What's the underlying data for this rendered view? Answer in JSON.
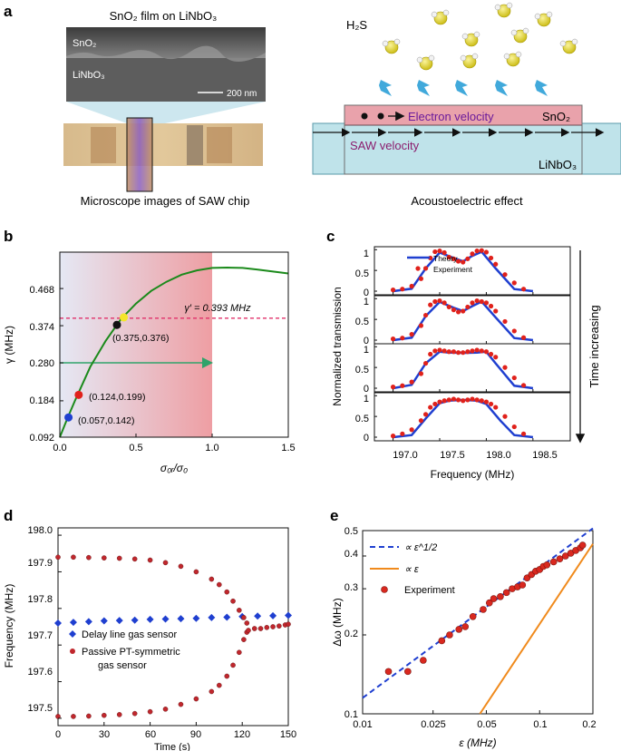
{
  "panels": {
    "a": {
      "label": "a",
      "sem_title": "SnO₂ film on LiNbO₃",
      "sem_layer_top": "SnO₂",
      "sem_layer_bottom": "LiNbO₃",
      "scale_bar": "200 nm",
      "chip_caption": "Microscope images of SAW chip",
      "gas_label": "H₂S",
      "electron_label": "Electron velocity",
      "film_label": "SnO₂",
      "saw_label": "SAW velocity",
      "substrate_label": "LiNbO₃",
      "effect_caption": "Acoustoelectric effect",
      "colors": {
        "film": "#e9a2ab",
        "substrate": "#bfe3ea",
        "arrow": "#41a9db",
        "molecule_s": "#e1d21b",
        "text_purple": "#6a1a9b"
      }
    },
    "b": {
      "label": "b",
      "gamma_prime_label": "γ′ = 0.393 MHz",
      "point_labels": [
        "(0.375,0.376)",
        "(0.124,0.199)",
        "(0.057,0.142)"
      ],
      "xlabel": "σ₀ᵣ/σ₀",
      "ylabel": "γ (MHz)",
      "xticks": [
        "0.0",
        "0.5",
        "1.0",
        "1.5"
      ],
      "yticks": [
        "0.092",
        "0.184",
        "0.280",
        "0.374",
        "0.468"
      ]
    },
    "c": {
      "label": "c",
      "legend": [
        "Theory",
        "Experiment"
      ],
      "ylabel": "Normalized transmission",
      "xlabel": "Frequency (MHz)",
      "xticks": [
        "197.0",
        "197.5",
        "198.0",
        "198.5"
      ],
      "yticks": [
        "0",
        "0.5",
        "1"
      ],
      "side_label": "Time increasing"
    },
    "d": {
      "label": "d",
      "xlabel": "Time (s)",
      "ylabel": "Frequency (MHz)",
      "xticks": [
        "0",
        "30",
        "60",
        "90",
        "120",
        "150"
      ],
      "yticks": [
        "197.5",
        "197.6",
        "197.7",
        "197.8",
        "197.9",
        "198.0"
      ],
      "legend": [
        "Delay line gas sensor",
        "Passive PT-symmetric",
        "gas sensor"
      ]
    },
    "e": {
      "label": "e",
      "xlabel": "ε (MHz)",
      "ylabel": "Δω (MHz)",
      "xticks": [
        "0.01",
        "0.025",
        "0.05",
        "0.1",
        "0.2"
      ],
      "yticks": [
        "0.1",
        "0.2",
        "0.3",
        "0.4",
        "0.5"
      ],
      "legend": [
        "∝ ε^1/2",
        "∝ ε",
        "Experiment"
      ]
    }
  },
  "chart_data": [
    {
      "id": "b",
      "type": "line",
      "title": "",
      "xlabel": "σ₀ᵣ/σ₀",
      "ylabel": "γ (MHz)",
      "xlim": [
        0,
        1.5
      ],
      "ylim": [
        0.092,
        0.56
      ],
      "series": [
        {
          "name": "γ curve",
          "x": [
            0,
            0.05,
            0.1,
            0.2,
            0.3,
            0.4,
            0.5,
            0.6,
            0.7,
            0.8,
            0.9,
            1.0,
            1.1,
            1.2,
            1.3,
            1.4,
            1.5
          ],
          "y": [
            0.092,
            0.14,
            0.185,
            0.27,
            0.335,
            0.39,
            0.43,
            0.462,
            0.485,
            0.503,
            0.514,
            0.52,
            0.521,
            0.52,
            0.516,
            0.511,
            0.506
          ]
        }
      ],
      "points": [
        {
          "x": 0.057,
          "y": 0.142,
          "color": "#1f3fd0"
        },
        {
          "x": 0.124,
          "y": 0.199,
          "color": "#e0211b"
        },
        {
          "x": 0.375,
          "y": 0.376,
          "color": "#111111"
        },
        {
          "x": 0.42,
          "y": 0.395,
          "color": "#f4e62a"
        }
      ],
      "hline": 0.393,
      "arrow_y": 0.28,
      "shade_to_x": 1.0
    },
    {
      "id": "c",
      "type": "line",
      "xlabel": "Frequency (MHz)",
      "ylabel": "Normalized transmission",
      "xlim": [
        196.8,
        198.9
      ],
      "ylim": [
        0,
        1.05
      ],
      "subplots": [
        {
          "theory": {
            "x": [
              197.0,
              197.2,
              197.35,
              197.5,
              197.65,
              197.75,
              197.85,
              197.95,
              198.1,
              198.3,
              198.5
            ],
            "y": [
              0,
              0.06,
              0.55,
              0.93,
              0.8,
              0.72,
              0.85,
              0.95,
              0.55,
              0.05,
              0
            ]
          },
          "experiment": {
            "x": [
              197.0,
              197.1,
              197.2,
              197.3,
              197.35,
              197.4,
              197.45,
              197.5,
              197.55,
              197.6,
              197.65,
              197.7,
              197.75,
              197.8,
              197.85,
              197.9,
              197.95,
              198.0,
              198.05,
              198.1,
              198.2,
              198.3,
              198.4
            ],
            "y": [
              0.03,
              0.05,
              0.12,
              0.3,
              0.55,
              0.8,
              0.95,
              0.97,
              0.93,
              0.82,
              0.78,
              0.72,
              0.7,
              0.78,
              0.9,
              0.97,
              0.98,
              0.94,
              0.8,
              0.65,
              0.4,
              0.2,
              0.05
            ]
          }
        },
        {
          "theory": {
            "x": [
              197.0,
              197.2,
              197.35,
              197.5,
              197.65,
              197.75,
              197.85,
              197.95,
              198.1,
              198.3,
              198.5
            ],
            "y": [
              0,
              0.06,
              0.58,
              0.92,
              0.78,
              0.7,
              0.82,
              0.93,
              0.55,
              0.05,
              0
            ]
          },
          "experiment": {
            "x": [
              197.0,
              197.1,
              197.2,
              197.3,
              197.35,
              197.4,
              197.45,
              197.5,
              197.55,
              197.6,
              197.65,
              197.7,
              197.75,
              197.8,
              197.85,
              197.9,
              197.95,
              198.0,
              198.05,
              198.1,
              198.2,
              198.3,
              198.4
            ],
            "y": [
              0.03,
              0.05,
              0.14,
              0.35,
              0.6,
              0.85,
              0.93,
              0.95,
              0.9,
              0.8,
              0.73,
              0.68,
              0.7,
              0.8,
              0.9,
              0.95,
              0.93,
              0.9,
              0.82,
              0.7,
              0.45,
              0.22,
              0.06
            ]
          }
        },
        {
          "theory": {
            "x": [
              197.0,
              197.2,
              197.35,
              197.5,
              197.6,
              197.75,
              197.9,
              198.0,
              198.1,
              198.3,
              198.5
            ],
            "y": [
              0,
              0.08,
              0.6,
              0.88,
              0.86,
              0.85,
              0.86,
              0.88,
              0.6,
              0.06,
              0
            ]
          },
          "experiment": {
            "x": [
              197.0,
              197.1,
              197.2,
              197.3,
              197.35,
              197.4,
              197.45,
              197.5,
              197.55,
              197.6,
              197.65,
              197.7,
              197.75,
              197.8,
              197.85,
              197.9,
              197.95,
              198.0,
              198.05,
              198.1,
              198.2,
              198.3,
              198.4
            ],
            "y": [
              0.03,
              0.06,
              0.15,
              0.35,
              0.6,
              0.82,
              0.9,
              0.92,
              0.9,
              0.88,
              0.88,
              0.86,
              0.86,
              0.88,
              0.9,
              0.92,
              0.9,
              0.88,
              0.82,
              0.75,
              0.5,
              0.25,
              0.07
            ]
          }
        },
        {
          "theory": {
            "x": [
              197.0,
              197.2,
              197.35,
              197.5,
              197.6,
              197.75,
              197.9,
              198.0,
              198.15,
              198.3,
              198.5
            ],
            "y": [
              0,
              0.05,
              0.45,
              0.82,
              0.88,
              0.9,
              0.88,
              0.8,
              0.4,
              0.05,
              0
            ]
          },
          "experiment": {
            "x": [
              197.0,
              197.1,
              197.2,
              197.3,
              197.35,
              197.4,
              197.45,
              197.5,
              197.55,
              197.6,
              197.65,
              197.7,
              197.75,
              197.8,
              197.85,
              197.9,
              197.95,
              198.0,
              198.05,
              198.1,
              198.2,
              198.3,
              198.4
            ],
            "y": [
              0.03,
              0.08,
              0.18,
              0.4,
              0.55,
              0.72,
              0.8,
              0.85,
              0.88,
              0.9,
              0.92,
              0.9,
              0.88,
              0.9,
              0.92,
              0.9,
              0.88,
              0.85,
              0.8,
              0.72,
              0.5,
              0.25,
              0.08
            ]
          }
        }
      ]
    },
    {
      "id": "d",
      "type": "scatter",
      "xlabel": "Time (s)",
      "ylabel": "Frequency (MHz)",
      "xlim": [
        0,
        150
      ],
      "ylim": [
        197.48,
        198.02
      ],
      "series": [
        {
          "name": "Delay line gas sensor",
          "color": "#1f3fd0",
          "x": [
            0,
            10,
            20,
            30,
            40,
            50,
            60,
            70,
            80,
            90,
            100,
            110,
            120,
            130,
            140,
            150
          ],
          "y": [
            197.76,
            197.762,
            197.764,
            197.766,
            197.767,
            197.768,
            197.77,
            197.771,
            197.772,
            197.773,
            197.775,
            197.776,
            197.778,
            197.779,
            197.78,
            197.781
          ]
        },
        {
          "name": "PT upper branch",
          "color": "#c0272d",
          "x": [
            0,
            10,
            20,
            30,
            40,
            50,
            60,
            70,
            80,
            90,
            100,
            105,
            110,
            114,
            118,
            121,
            123
          ],
          "y": [
            197.94,
            197.94,
            197.939,
            197.938,
            197.937,
            197.935,
            197.932,
            197.925,
            197.915,
            197.9,
            197.88,
            197.865,
            197.845,
            197.82,
            197.795,
            197.775,
            197.76
          ]
        },
        {
          "name": "PT lower branch",
          "color": "#c0272d",
          "x": [
            0,
            10,
            20,
            30,
            40,
            50,
            60,
            70,
            80,
            90,
            100,
            105,
            110,
            114,
            118,
            121,
            123
          ],
          "y": [
            197.505,
            197.505,
            197.506,
            197.508,
            197.51,
            197.513,
            197.518,
            197.525,
            197.538,
            197.553,
            197.573,
            197.59,
            197.615,
            197.645,
            197.68,
            197.715,
            197.735
          ]
        },
        {
          "name": "PT merged",
          "color": "#c0272d",
          "x": [
            124,
            128,
            132,
            136,
            140,
            144,
            148,
            150
          ],
          "y": [
            197.74,
            197.745,
            197.745,
            197.748,
            197.75,
            197.752,
            197.755,
            197.757
          ]
        }
      ]
    },
    {
      "id": "e",
      "type": "scatter",
      "xlabel": "ε (MHz)",
      "ylabel": "Δω (MHz)",
      "xscale": "log",
      "yscale": "log",
      "xlim": [
        0.01,
        0.2
      ],
      "ylim": [
        0.1,
        0.5
      ],
      "series": [
        {
          "name": "∝ ε^1/2",
          "color": "#1f3fd0",
          "style": "dashed",
          "x": [
            0.01,
            0.2
          ],
          "y": [
            0.115,
            0.51
          ]
        },
        {
          "name": "∝ ε",
          "color": "#f08a1c",
          "style": "solid",
          "x": [
            0.046,
            0.2
          ],
          "y": [
            0.1,
            0.445
          ]
        },
        {
          "name": "Experiment",
          "color": "#d9281f",
          "x": [
            0.014,
            0.018,
            0.022,
            0.028,
            0.031,
            0.035,
            0.038,
            0.042,
            0.048,
            0.052,
            0.055,
            0.06,
            0.065,
            0.07,
            0.075,
            0.08,
            0.085,
            0.09,
            0.095,
            0.1,
            0.105,
            0.11,
            0.12,
            0.13,
            0.14,
            0.15,
            0.16,
            0.17,
            0.175
          ],
          "y": [
            0.145,
            0.145,
            0.16,
            0.19,
            0.2,
            0.21,
            0.215,
            0.235,
            0.25,
            0.265,
            0.275,
            0.28,
            0.29,
            0.3,
            0.305,
            0.31,
            0.33,
            0.34,
            0.35,
            0.355,
            0.365,
            0.37,
            0.38,
            0.39,
            0.4,
            0.41,
            0.42,
            0.43,
            0.44
          ]
        }
      ]
    }
  ]
}
